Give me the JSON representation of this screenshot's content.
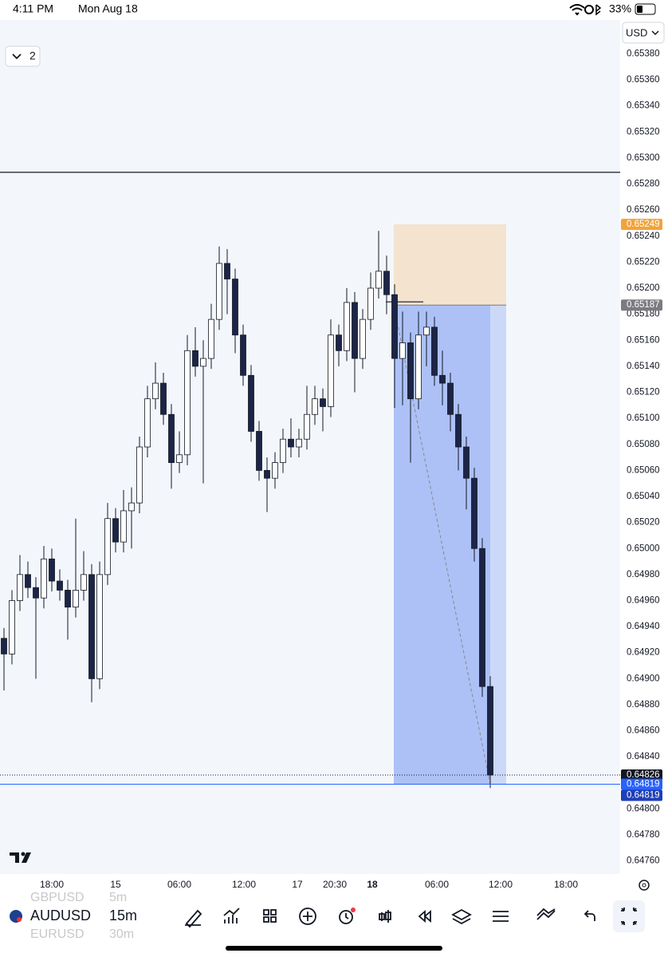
{
  "status_bar": {
    "time": "4:11 PM",
    "date": "Mon Aug 18",
    "battery": "33%"
  },
  "currency": "USD",
  "layout_count": "2",
  "symbols": [
    {
      "name": "GBPUSD",
      "interval": "5m"
    },
    {
      "name": "AUDUSD",
      "interval": "15m"
    },
    {
      "name": "EURUSD",
      "interval": "30m"
    }
  ],
  "chart": {
    "type": "candlestick",
    "ylim": [
      0.6475,
      0.65406
    ],
    "yticks": [
      {
        "value": 0.6538,
        "label": "0.65380"
      },
      {
        "value": 0.6536,
        "label": "0.65360"
      },
      {
        "value": 0.6534,
        "label": "0.65340"
      },
      {
        "value": 0.6532,
        "label": "0.65320"
      },
      {
        "value": 0.653,
        "label": "0.65300"
      },
      {
        "value": 0.6528,
        "label": "0.65280"
      },
      {
        "value": 0.6526,
        "label": "0.65260"
      },
      {
        "value": 0.6524,
        "label": "0.65240"
      },
      {
        "value": 0.6522,
        "label": "0.65220"
      },
      {
        "value": 0.652,
        "label": "0.65200"
      },
      {
        "value": 0.6518,
        "label": "0.65180"
      },
      {
        "value": 0.6516,
        "label": "0.65160"
      },
      {
        "value": 0.6514,
        "label": "0.65140"
      },
      {
        "value": 0.6512,
        "label": "0.65120"
      },
      {
        "value": 0.651,
        "label": "0.65100"
      },
      {
        "value": 0.6508,
        "label": "0.65080"
      },
      {
        "value": 0.6506,
        "label": "0.65060"
      },
      {
        "value": 0.6504,
        "label": "0.65040"
      },
      {
        "value": 0.6502,
        "label": "0.65020"
      },
      {
        "value": 0.65,
        "label": "0.65000"
      },
      {
        "value": 0.6498,
        "label": "0.64980"
      },
      {
        "value": 0.6496,
        "label": "0.64960"
      },
      {
        "value": 0.6494,
        "label": "0.64940"
      },
      {
        "value": 0.6492,
        "label": "0.64920"
      },
      {
        "value": 0.649,
        "label": "0.64900"
      },
      {
        "value": 0.6488,
        "label": "0.64880"
      },
      {
        "value": 0.6486,
        "label": "0.64860"
      },
      {
        "value": 0.6484,
        "label": "0.64840"
      },
      {
        "value": 0.6482,
        "label": "0.64820"
      },
      {
        "value": 0.648,
        "label": "0.64800"
      },
      {
        "value": 0.6478,
        "label": "0.64780"
      },
      {
        "value": 0.6476,
        "label": "0.64760"
      }
    ],
    "time_labels": [
      "18:00",
      "15",
      "06:00",
      "12:00",
      "17",
      "20:30",
      "18",
      "06:00",
      "12:00",
      "18:00"
    ],
    "horizontal_line": 0.65289,
    "price_tags": [
      {
        "price": 0.65249,
        "color": "#f2a33a"
      },
      {
        "price": 0.65187,
        "color": "#7b7b80"
      },
      {
        "price": 0.64826,
        "color": "#131722"
      },
      {
        "price": 0.64819,
        "color": "#2962ff"
      },
      {
        "price": 0.64819,
        "color": "#1f3fb8"
      }
    ],
    "candles": [
      [
        0.64931,
        0.64939,
        0.64891,
        0.64919
      ],
      [
        0.64919,
        0.64968,
        0.64911,
        0.6496
      ],
      [
        0.6496,
        0.64995,
        0.64952,
        0.6498
      ],
      [
        0.6498,
        0.6499,
        0.64962,
        0.6497
      ],
      [
        0.6497,
        0.64978,
        0.649,
        0.64962
      ],
      [
        0.64962,
        0.65002,
        0.64954,
        0.64992
      ],
      [
        0.64992,
        0.65,
        0.64967,
        0.64975
      ],
      [
        0.64975,
        0.64984,
        0.6496,
        0.64968
      ],
      [
        0.64968,
        0.64976,
        0.6493,
        0.64955
      ],
      [
        0.64955,
        0.65023,
        0.64947,
        0.64968
      ],
      [
        0.64968,
        0.64998,
        0.6496,
        0.6498
      ],
      [
        0.6498,
        0.64988,
        0.64882,
        0.649
      ],
      [
        0.649,
        0.6499,
        0.64892,
        0.6498
      ],
      [
        0.6498,
        0.65035,
        0.64972,
        0.65023
      ],
      [
        0.65023,
        0.65031,
        0.64997,
        0.65005
      ],
      [
        0.65005,
        0.65045,
        0.64997,
        0.65029
      ],
      [
        0.65029,
        0.65047,
        0.65,
        0.65035
      ],
      [
        0.65035,
        0.65086,
        0.65027,
        0.65078
      ],
      [
        0.65078,
        0.65125,
        0.6507,
        0.65115
      ],
      [
        0.65115,
        0.65143,
        0.65107,
        0.65127
      ],
      [
        0.65127,
        0.65135,
        0.65095,
        0.65103
      ],
      [
        0.65103,
        0.65111,
        0.65046,
        0.65066
      ],
      [
        0.65066,
        0.6509,
        0.65058,
        0.65072
      ],
      [
        0.65072,
        0.65164,
        0.65064,
        0.65152
      ],
      [
        0.65152,
        0.6517,
        0.65132,
        0.6514
      ],
      [
        0.6514,
        0.6516,
        0.6505,
        0.65146
      ],
      [
        0.65146,
        0.65188,
        0.65138,
        0.65176
      ],
      [
        0.65176,
        0.65232,
        0.65168,
        0.65219
      ],
      [
        0.65219,
        0.6523,
        0.6518,
        0.65207
      ],
      [
        0.65207,
        0.65215,
        0.6515,
        0.65164
      ],
      [
        0.65164,
        0.65172,
        0.65125,
        0.65133
      ],
      [
        0.65133,
        0.65141,
        0.65082,
        0.6509
      ],
      [
        0.6509,
        0.65098,
        0.65052,
        0.6506
      ],
      [
        0.6506,
        0.6507,
        0.65028,
        0.65054
      ],
      [
        0.65054,
        0.65074,
        0.65046,
        0.65066
      ],
      [
        0.65066,
        0.65092,
        0.65058,
        0.65084
      ],
      [
        0.65084,
        0.651,
        0.6507,
        0.65078
      ],
      [
        0.65078,
        0.65092,
        0.6507,
        0.65084
      ],
      [
        0.65084,
        0.65125,
        0.65076,
        0.65103
      ],
      [
        0.65103,
        0.65125,
        0.65095,
        0.65115
      ],
      [
        0.65115,
        0.65123,
        0.6509,
        0.65109
      ],
      [
        0.65109,
        0.65176,
        0.65101,
        0.65164
      ],
      [
        0.65164,
        0.65172,
        0.6514,
        0.65152
      ],
      [
        0.65152,
        0.652,
        0.65144,
        0.65189
      ],
      [
        0.65189,
        0.65197,
        0.6512,
        0.65146
      ],
      [
        0.65146,
        0.65184,
        0.65138,
        0.65176
      ],
      [
        0.65176,
        0.65212,
        0.65168,
        0.652
      ],
      [
        0.652,
        0.65244,
        0.65192,
        0.65213
      ],
      [
        0.65213,
        0.65225,
        0.6518,
        0.65195
      ],
      [
        0.65195,
        0.65203,
        0.65108,
        0.65146
      ],
      [
        0.65146,
        0.65182,
        0.6511,
        0.65158
      ],
      [
        0.65158,
        0.65166,
        0.65066,
        0.65115
      ],
      [
        0.65115,
        0.65182,
        0.65107,
        0.65164
      ],
      [
        0.65164,
        0.65182,
        0.6514,
        0.6517
      ],
      [
        0.6517,
        0.65178,
        0.65125,
        0.65133
      ],
      [
        0.65133,
        0.65152,
        0.6511,
        0.65127
      ],
      [
        0.65127,
        0.65135,
        0.6509,
        0.65103
      ],
      [
        0.65103,
        0.65111,
        0.6506,
        0.65078
      ],
      [
        0.65078,
        0.65086,
        0.6503,
        0.65054
      ],
      [
        0.65054,
        0.65062,
        0.6499,
        0.65
      ],
      [
        0.65,
        0.65008,
        0.64886,
        0.64894
      ],
      [
        0.64894,
        0.64902,
        0.64816,
        0.64826
      ]
    ]
  }
}
